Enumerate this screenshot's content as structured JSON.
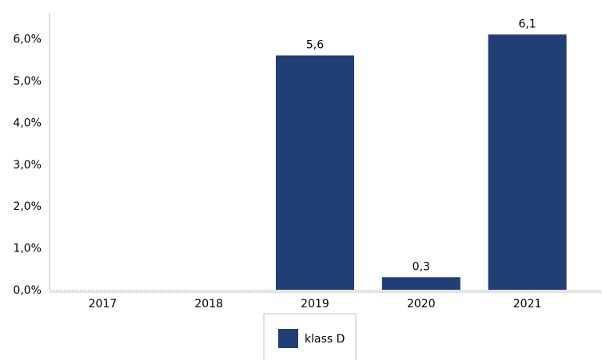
{
  "chart_data": {
    "type": "bar",
    "categories": [
      "2017",
      "2018",
      "2019",
      "2020",
      "2021"
    ],
    "series": [
      {
        "name": "klass D",
        "values": [
          null,
          null,
          5.6,
          0.3,
          6.1
        ],
        "value_labels": [
          "",
          "",
          "5,6",
          "0,3",
          "6,1"
        ],
        "color": "#213F75"
      }
    ],
    "ylim": [
      0,
      6
    ],
    "yticks": [
      0,
      1,
      2,
      3,
      4,
      5,
      6
    ],
    "ytick_labels": [
      "0,0%",
      "1,0%",
      "2,0%",
      "3,0%",
      "4,0%",
      "5,0%",
      "6,0%"
    ],
    "grid": false,
    "legend_position": "bottom"
  }
}
